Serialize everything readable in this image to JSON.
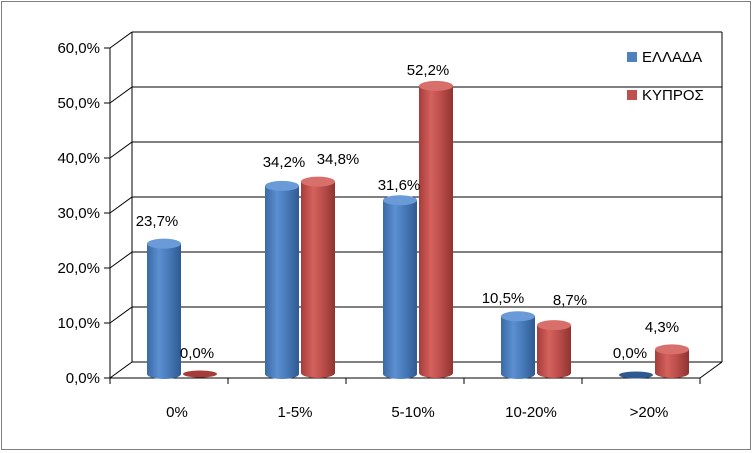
{
  "chart_data": {
    "type": "bar",
    "categories": [
      "0%",
      "1-5%",
      "5-10%",
      "10-20%",
      ">20%"
    ],
    "series": [
      {
        "name": "ΕΛΛΑΔΑ",
        "values": [
          23.7,
          34.2,
          31.6,
          10.5,
          0.0
        ],
        "labels": [
          "23,7%",
          "34,2%",
          "31,6%",
          "10,5%",
          "0,0%"
        ],
        "color": "#4f81bd"
      },
      {
        "name": "ΚΥΠΡΟΣ",
        "values": [
          0.0,
          34.8,
          52.2,
          8.7,
          4.3
        ],
        "labels": [
          "0,0%",
          "34,8%",
          "52,2%",
          "8,7%",
          "4,3%"
        ],
        "color": "#c0504d"
      }
    ],
    "yticks": [
      "0,0%",
      "10,0%",
      "20,0%",
      "30,0%",
      "40,0%",
      "50,0%",
      "60,0%"
    ],
    "ylim": [
      0,
      60
    ],
    "grid": true,
    "legend": "top-right",
    "style": "3d-cylinder"
  }
}
